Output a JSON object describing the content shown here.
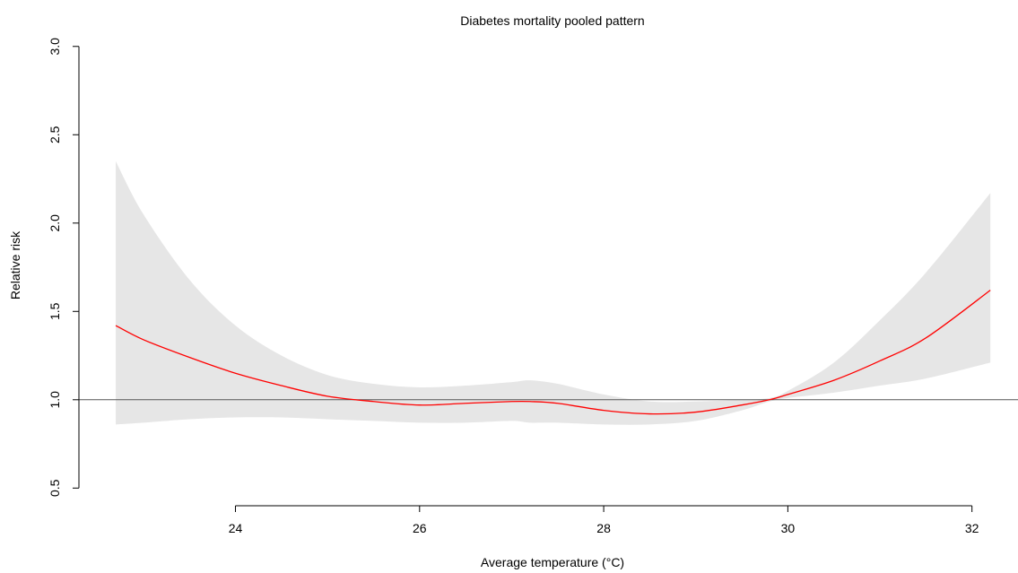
{
  "chart_data": {
    "type": "line",
    "title": "Diabetes mortality pooled pattern",
    "xlabel": "Average temperature (°C)",
    "ylabel": "Relative risk",
    "xlim": [
      22.3,
      32.5
    ],
    "ylim": [
      0.4,
      3.08
    ],
    "xticks": [
      24,
      26,
      28,
      30,
      32
    ],
    "xtick_labels": [
      "24",
      "26",
      "28",
      "30",
      "32"
    ],
    "yticks": [
      0.5,
      1.0,
      1.5,
      2.0,
      2.5,
      3.0
    ],
    "ytick_labels": [
      "0.5",
      "1.0",
      "1.5",
      "2.0",
      "2.5",
      "3.0"
    ],
    "reference_line": 1.0,
    "grid": false,
    "colors": {
      "line": "#ff0000",
      "band": "#e6e6e6",
      "reference": "#555555",
      "axis": "#000000"
    },
    "x": [
      22.7,
      23.0,
      23.5,
      24.0,
      24.5,
      25.0,
      25.5,
      26.0,
      26.5,
      27.0,
      27.2,
      27.5,
      28.0,
      28.5,
      29.0,
      29.5,
      29.8,
      30.0,
      30.5,
      31.0,
      31.5,
      32.2
    ],
    "series": [
      {
        "values": [
          1.42,
          1.34,
          1.24,
          1.15,
          1.08,
          1.02,
          0.99,
          0.97,
          0.98,
          0.99,
          0.99,
          0.98,
          0.94,
          0.92,
          0.93,
          0.97,
          1.0,
          1.03,
          1.11,
          1.22,
          1.35,
          1.62
        ]
      }
    ],
    "ci_lower": [
      0.86,
      0.87,
      0.89,
      0.9,
      0.9,
      0.89,
      0.88,
      0.87,
      0.87,
      0.88,
      0.87,
      0.87,
      0.86,
      0.86,
      0.88,
      0.94,
      0.99,
      1.01,
      1.04,
      1.08,
      1.12,
      1.21
    ],
    "ci_upper": [
      2.35,
      2.05,
      1.68,
      1.42,
      1.25,
      1.14,
      1.09,
      1.07,
      1.08,
      1.1,
      1.11,
      1.09,
      1.03,
      0.99,
      0.99,
      1.0,
      1.01,
      1.05,
      1.21,
      1.45,
      1.72,
      2.17
    ]
  }
}
